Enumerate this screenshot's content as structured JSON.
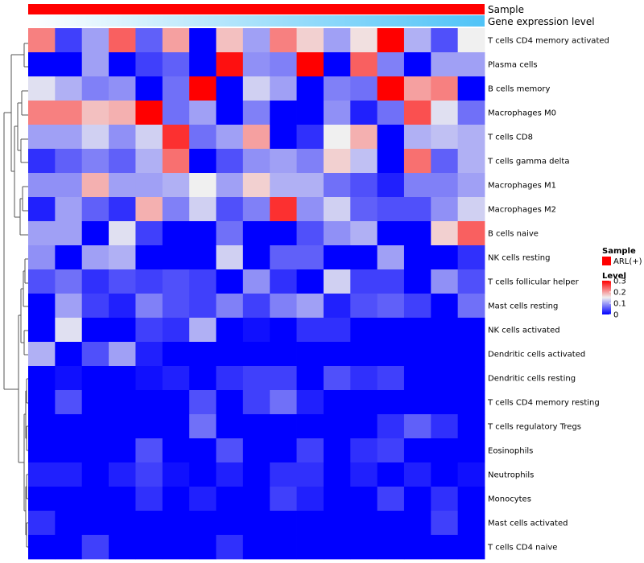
{
  "chart_data": {
    "type": "heatmap",
    "annotations": [
      {
        "label": "Sample",
        "color_start": "#ff0000",
        "color_end": "#ff0000"
      },
      {
        "label": "Gene expression level",
        "color_start": "#ffffff",
        "color_end": "#4fc3f7"
      }
    ],
    "rows": [
      "T cells CD4 memory activated",
      "Plasma cells",
      "B cells memory",
      "Macrophages M0",
      "T cells CD8",
      "T cells gamma delta",
      "Macrophages M1",
      "Macrophages M2",
      "B cells naive",
      "NK cells resting",
      "T cells follicular helper",
      "Mast cells resting",
      "NK cells activated",
      "Dendritic cells activated",
      "Dendritic cells resting",
      "T cells CD4 memory resting",
      "T cells regulatory  Tregs",
      "Eosinophils",
      "Neutrophils",
      "Monocytes",
      "Mast cells activated",
      "T cells CD4 naive"
    ],
    "n_columns": 17,
    "values": [
      [
        0.22,
        0.04,
        0.1,
        0.24,
        0.06,
        0.2,
        0.0,
        0.18,
        0.1,
        0.22,
        0.17,
        0.1,
        0.16,
        0.3,
        0.11,
        0.05,
        0.15
      ],
      [
        0.0,
        0.0,
        0.1,
        0.0,
        0.04,
        0.06,
        0.0,
        0.29,
        0.09,
        0.08,
        0.3,
        0.0,
        0.24,
        0.08,
        0.0,
        0.1,
        0.1
      ],
      [
        0.14,
        0.11,
        0.08,
        0.09,
        0.0,
        0.07,
        0.3,
        0.0,
        0.13,
        0.1,
        0.0,
        0.08,
        0.07,
        0.3,
        0.2,
        0.22,
        0.0
      ],
      [
        0.22,
        0.22,
        0.18,
        0.19,
        0.3,
        0.07,
        0.1,
        0.0,
        0.08,
        0.0,
        0.0,
        0.09,
        0.02,
        0.07,
        0.25,
        0.14,
        0.07
      ],
      [
        0.1,
        0.1,
        0.13,
        0.09,
        0.13,
        0.27,
        0.07,
        0.1,
        0.2,
        0.0,
        0.03,
        0.15,
        0.19,
        0.0,
        0.11,
        0.12,
        0.11
      ],
      [
        0.03,
        0.06,
        0.08,
        0.06,
        0.11,
        0.23,
        0.0,
        0.05,
        0.09,
        0.1,
        0.08,
        0.17,
        0.12,
        0.0,
        0.23,
        0.06,
        0.11
      ],
      [
        0.09,
        0.09,
        0.19,
        0.1,
        0.1,
        0.11,
        0.15,
        0.1,
        0.17,
        0.11,
        0.11,
        0.07,
        0.05,
        0.02,
        0.08,
        0.08,
        0.1
      ],
      [
        0.02,
        0.1,
        0.06,
        0.03,
        0.19,
        0.08,
        0.13,
        0.05,
        0.08,
        0.27,
        0.09,
        0.13,
        0.06,
        0.05,
        0.05,
        0.09,
        0.13
      ],
      [
        0.1,
        0.1,
        0.0,
        0.14,
        0.04,
        0.0,
        0.0,
        0.07,
        0.0,
        0.0,
        0.05,
        0.09,
        0.11,
        0.0,
        0.0,
        0.17,
        0.24
      ],
      [
        0.09,
        0.0,
        0.1,
        0.11,
        0.0,
        0.0,
        0.0,
        0.13,
        0.0,
        0.06,
        0.06,
        0.0,
        0.0,
        0.1,
        0.0,
        0.0,
        0.03
      ],
      [
        0.05,
        0.07,
        0.03,
        0.05,
        0.04,
        0.05,
        0.04,
        0.0,
        0.09,
        0.03,
        0.0,
        0.13,
        0.04,
        0.04,
        0.0,
        0.09,
        0.05
      ],
      [
        0.0,
        0.1,
        0.04,
        0.02,
        0.08,
        0.05,
        0.04,
        0.08,
        0.04,
        0.08,
        0.1,
        0.02,
        0.05,
        0.06,
        0.04,
        0.0,
        0.07
      ],
      [
        0.0,
        0.14,
        0.0,
        0.0,
        0.04,
        0.03,
        0.11,
        0.0,
        0.01,
        0.0,
        0.03,
        0.03,
        0.0,
        0.0,
        0.0,
        0.0,
        0.0
      ],
      [
        0.11,
        0.0,
        0.05,
        0.1,
        0.02,
        0.0,
        0.0,
        0.0,
        0.0,
        0.0,
        0.0,
        0.0,
        0.0,
        0.0,
        0.0,
        0.0,
        0.0
      ],
      [
        0.0,
        0.01,
        0.0,
        0.0,
        0.01,
        0.02,
        0.0,
        0.03,
        0.04,
        0.04,
        0.0,
        0.05,
        0.03,
        0.04,
        0.0,
        0.0,
        0.0
      ],
      [
        0.0,
        0.05,
        0.0,
        0.0,
        0.0,
        0.0,
        0.05,
        0.0,
        0.04,
        0.07,
        0.02,
        0.0,
        0.0,
        0.0,
        0.0,
        0.0,
        0.0
      ],
      [
        0.0,
        0.0,
        0.0,
        0.0,
        0.0,
        0.0,
        0.07,
        0.0,
        0.0,
        0.0,
        0.0,
        0.0,
        0.0,
        0.03,
        0.06,
        0.03,
        0.0
      ],
      [
        0.0,
        0.0,
        0.0,
        0.0,
        0.05,
        0.0,
        0.0,
        0.05,
        0.0,
        0.0,
        0.04,
        0.0,
        0.03,
        0.04,
        0.0,
        0.0,
        0.0
      ],
      [
        0.02,
        0.02,
        0.0,
        0.02,
        0.04,
        0.01,
        0.0,
        0.02,
        0.0,
        0.03,
        0.03,
        0.0,
        0.02,
        0.0,
        0.02,
        0.0,
        0.01
      ],
      [
        0.0,
        0.0,
        0.0,
        0.0,
        0.03,
        0.0,
        0.02,
        0.0,
        0.0,
        0.04,
        0.02,
        0.0,
        0.0,
        0.04,
        0.0,
        0.03,
        0.0
      ],
      [
        0.03,
        0.0,
        0.0,
        0.0,
        0.0,
        0.0,
        0.0,
        0.0,
        0.0,
        0.0,
        0.0,
        0.0,
        0.0,
        0.0,
        0.0,
        0.04,
        0.0
      ],
      [
        0.0,
        0.0,
        0.04,
        0.0,
        0.0,
        0.0,
        0.0,
        0.03,
        0.0,
        0.0,
        0.0,
        0.0,
        0.0,
        0.0,
        0.0,
        0.0,
        0.0
      ]
    ],
    "color_scale": {
      "min": 0,
      "mid": 0.15,
      "max": 0.3,
      "low_color": "#0000ff",
      "mid_color": "#f0f0f0",
      "high_color": "#ff0000"
    },
    "legend": {
      "sample_title": "Sample",
      "sample_label": "ARL(+)",
      "sample_color": "#ff0000",
      "level_title": "Level",
      "level_ticks": [
        "0.3",
        "0.2",
        "0.1",
        "0"
      ],
      "level_tick_values": [
        0.3,
        0.2,
        0.1,
        0
      ]
    }
  }
}
